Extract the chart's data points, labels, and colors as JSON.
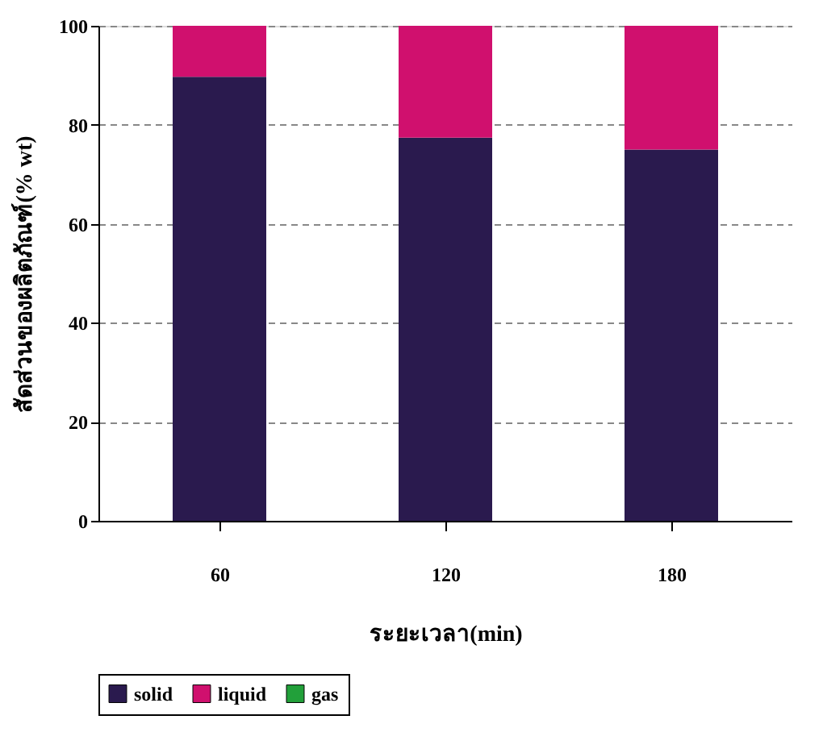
{
  "chart_data": {
    "type": "bar",
    "stacked": true,
    "xlabel": "ระยะเวลา(min)",
    "ylabel": "สัดส่วนของผลิตภัณฑ์(% wt)",
    "categories": [
      "60",
      "120",
      "180"
    ],
    "series": [
      {
        "name": "solid",
        "color": "#2a1a4e",
        "values": [
          89.7,
          77.4,
          75
        ]
      },
      {
        "name": "liquid",
        "color": "#d0106e",
        "values": [
          10.3,
          22.6,
          25
        ]
      },
      {
        "name": "gas",
        "color": "#22a03a",
        "values": [
          0,
          0,
          0
        ]
      }
    ],
    "ylim": [
      0,
      100
    ],
    "yticks": [
      0,
      20,
      40,
      60,
      80,
      100
    ],
    "grid": "y",
    "legend": "bottom"
  }
}
